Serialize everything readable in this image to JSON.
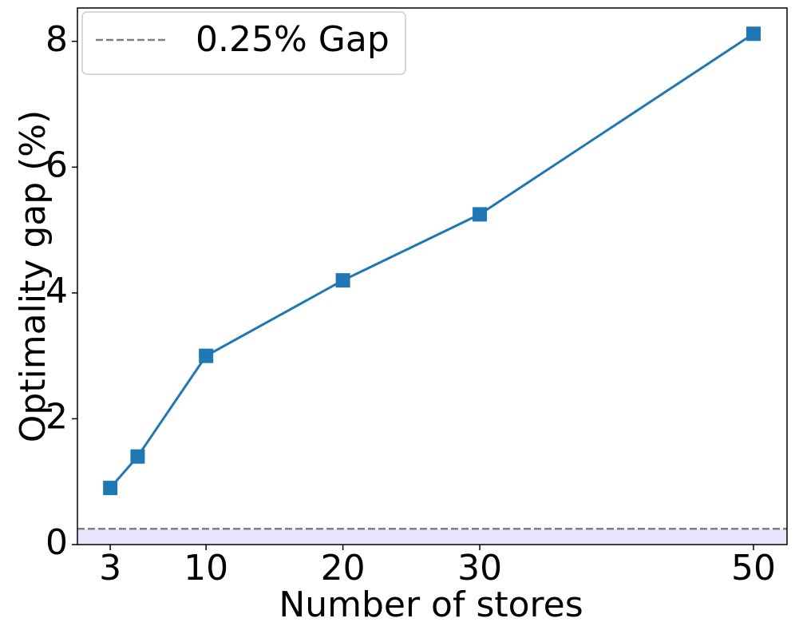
{
  "chart_data": {
    "type": "line",
    "x_label": "Number of stores",
    "y_label": "Optimality gap (%)",
    "x": [
      3,
      5,
      10,
      20,
      30,
      50
    ],
    "series": [
      {
        "color": "#1f77b4",
        "marker": "square",
        "values": [
          0.9,
          1.4,
          3.0,
          4.2,
          5.25,
          8.12
        ]
      }
    ],
    "xlim": [
      0.6,
      52.45
    ],
    "xticks": [
      3,
      10,
      20,
      30,
      50
    ],
    "ylim": [
      0,
      8.53
    ],
    "yticks": [
      0,
      2,
      4,
      6,
      8
    ],
    "reference_line": {
      "value": 0.25,
      "label": "0.25% Gap",
      "color": "#808080",
      "fill": "#e6e6ff"
    },
    "legend": "upper left"
  }
}
